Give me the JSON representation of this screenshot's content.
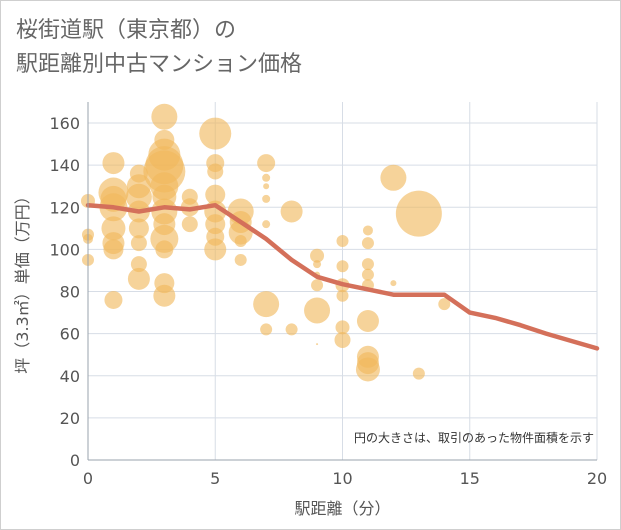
{
  "chart_data": {
    "type": "scatter",
    "title_lines": [
      "桜街道駅（東京都）の",
      "駅距離別中古マンション価格"
    ],
    "xlabel": "駅距離（分）",
    "ylabel": "坪（3.3㎡）単価（万円）",
    "xlim": [
      0,
      20
    ],
    "ylim": [
      0,
      170
    ],
    "x_ticks": [
      0,
      5,
      10,
      15,
      20
    ],
    "y_ticks": [
      0,
      20,
      40,
      60,
      80,
      100,
      120,
      140,
      160
    ],
    "grid": true,
    "annotation": "円の大きさは、取引のあった物件面積を示す",
    "colors": {
      "bubble": "#f0b85c",
      "line": "#d4705a",
      "grid": "#d7dde6",
      "axis": "#9aa3ad"
    },
    "points": [
      {
        "x": 0,
        "y": 123,
        "s": 7
      },
      {
        "x": 0,
        "y": 107,
        "s": 6
      },
      {
        "x": 0,
        "y": 105,
        "s": 5
      },
      {
        "x": 0,
        "y": 95,
        "s": 6
      },
      {
        "x": 1,
        "y": 141,
        "s": 11
      },
      {
        "x": 1,
        "y": 127,
        "s": 15
      },
      {
        "x": 1,
        "y": 124,
        "s": 13
      },
      {
        "x": 1,
        "y": 120,
        "s": 14
      },
      {
        "x": 1,
        "y": 110,
        "s": 12
      },
      {
        "x": 1,
        "y": 103,
        "s": 11
      },
      {
        "x": 1,
        "y": 100,
        "s": 10
      },
      {
        "x": 1,
        "y": 76,
        "s": 9
      },
      {
        "x": 2,
        "y": 136,
        "s": 9
      },
      {
        "x": 2,
        "y": 130,
        "s": 12
      },
      {
        "x": 2,
        "y": 125,
        "s": 13
      },
      {
        "x": 2,
        "y": 118,
        "s": 11
      },
      {
        "x": 2,
        "y": 110,
        "s": 10
      },
      {
        "x": 2,
        "y": 103,
        "s": 8
      },
      {
        "x": 2,
        "y": 93,
        "s": 8
      },
      {
        "x": 2,
        "y": 86,
        "s": 11
      },
      {
        "x": 3,
        "y": 163,
        "s": 13
      },
      {
        "x": 3,
        "y": 152,
        "s": 10
      },
      {
        "x": 3,
        "y": 145,
        "s": 16
      },
      {
        "x": 3,
        "y": 140,
        "s": 19
      },
      {
        "x": 3,
        "y": 137,
        "s": 21
      },
      {
        "x": 3,
        "y": 130,
        "s": 14
      },
      {
        "x": 3,
        "y": 125,
        "s": 12
      },
      {
        "x": 3,
        "y": 118,
        "s": 13
      },
      {
        "x": 3,
        "y": 112,
        "s": 11
      },
      {
        "x": 3,
        "y": 105,
        "s": 14
      },
      {
        "x": 3,
        "y": 100,
        "s": 9
      },
      {
        "x": 3,
        "y": 84,
        "s": 10
      },
      {
        "x": 3,
        "y": 78,
        "s": 11
      },
      {
        "x": 4,
        "y": 125,
        "s": 8
      },
      {
        "x": 4,
        "y": 120,
        "s": 9
      },
      {
        "x": 4,
        "y": 112,
        "s": 8
      },
      {
        "x": 5,
        "y": 155,
        "s": 16
      },
      {
        "x": 5,
        "y": 141,
        "s": 9
      },
      {
        "x": 5,
        "y": 137,
        "s": 8
      },
      {
        "x": 5,
        "y": 126,
        "s": 10
      },
      {
        "x": 5,
        "y": 118,
        "s": 11
      },
      {
        "x": 5,
        "y": 112,
        "s": 10
      },
      {
        "x": 5,
        "y": 106,
        "s": 9
      },
      {
        "x": 5,
        "y": 100,
        "s": 11
      },
      {
        "x": 6,
        "y": 118,
        "s": 13
      },
      {
        "x": 6,
        "y": 113,
        "s": 11
      },
      {
        "x": 6,
        "y": 108,
        "s": 12
      },
      {
        "x": 6,
        "y": 104,
        "s": 6
      },
      {
        "x": 6,
        "y": 95,
        "s": 6
      },
      {
        "x": 7,
        "y": 141,
        "s": 9
      },
      {
        "x": 7,
        "y": 134,
        "s": 4
      },
      {
        "x": 7,
        "y": 130,
        "s": 3
      },
      {
        "x": 7,
        "y": 124,
        "s": 4
      },
      {
        "x": 7,
        "y": 112,
        "s": 4
      },
      {
        "x": 7,
        "y": 74,
        "s": 13
      },
      {
        "x": 7,
        "y": 62,
        "s": 6
      },
      {
        "x": 8,
        "y": 118,
        "s": 11
      },
      {
        "x": 8,
        "y": 62,
        "s": 6
      },
      {
        "x": 9,
        "y": 97,
        "s": 7
      },
      {
        "x": 9,
        "y": 93,
        "s": 4
      },
      {
        "x": 9,
        "y": 88,
        "s": 3
      },
      {
        "x": 9,
        "y": 83,
        "s": 6
      },
      {
        "x": 9,
        "y": 71,
        "s": 13
      },
      {
        "x": 9,
        "y": 55,
        "s": 1
      },
      {
        "x": 10,
        "y": 104,
        "s": 6
      },
      {
        "x": 10,
        "y": 92,
        "s": 6
      },
      {
        "x": 10,
        "y": 83,
        "s": 7
      },
      {
        "x": 10,
        "y": 78,
        "s": 6
      },
      {
        "x": 10,
        "y": 63,
        "s": 7
      },
      {
        "x": 10,
        "y": 57,
        "s": 8
      },
      {
        "x": 11,
        "y": 109,
        "s": 5
      },
      {
        "x": 11,
        "y": 103,
        "s": 6
      },
      {
        "x": 11,
        "y": 93,
        "s": 6
      },
      {
        "x": 11,
        "y": 88,
        "s": 6
      },
      {
        "x": 11,
        "y": 83,
        "s": 6
      },
      {
        "x": 11,
        "y": 66,
        "s": 11
      },
      {
        "x": 11,
        "y": 49,
        "s": 11
      },
      {
        "x": 11,
        "y": 46,
        "s": 11
      },
      {
        "x": 11,
        "y": 43,
        "s": 12
      },
      {
        "x": 12,
        "y": 134,
        "s": 13
      },
      {
        "x": 12,
        "y": 84,
        "s": 3
      },
      {
        "x": 13,
        "y": 117,
        "s": 23
      },
      {
        "x": 13,
        "y": 41,
        "s": 6
      },
      {
        "x": 14,
        "y": 74,
        "s": 6
      }
    ],
    "series": [
      {
        "type": "line",
        "x": [
          0,
          1,
          2,
          3,
          4,
          5,
          6,
          7,
          8,
          9,
          10,
          11,
          12,
          13,
          14,
          15,
          16,
          17,
          18,
          19,
          20
        ],
        "values": [
          121,
          120,
          118,
          120,
          119,
          121,
          113,
          105,
          95,
          87,
          83.5,
          81,
          78.5,
          78.5,
          78.5,
          70,
          67.5,
          64,
          60,
          56.5,
          53
        ]
      }
    ]
  }
}
